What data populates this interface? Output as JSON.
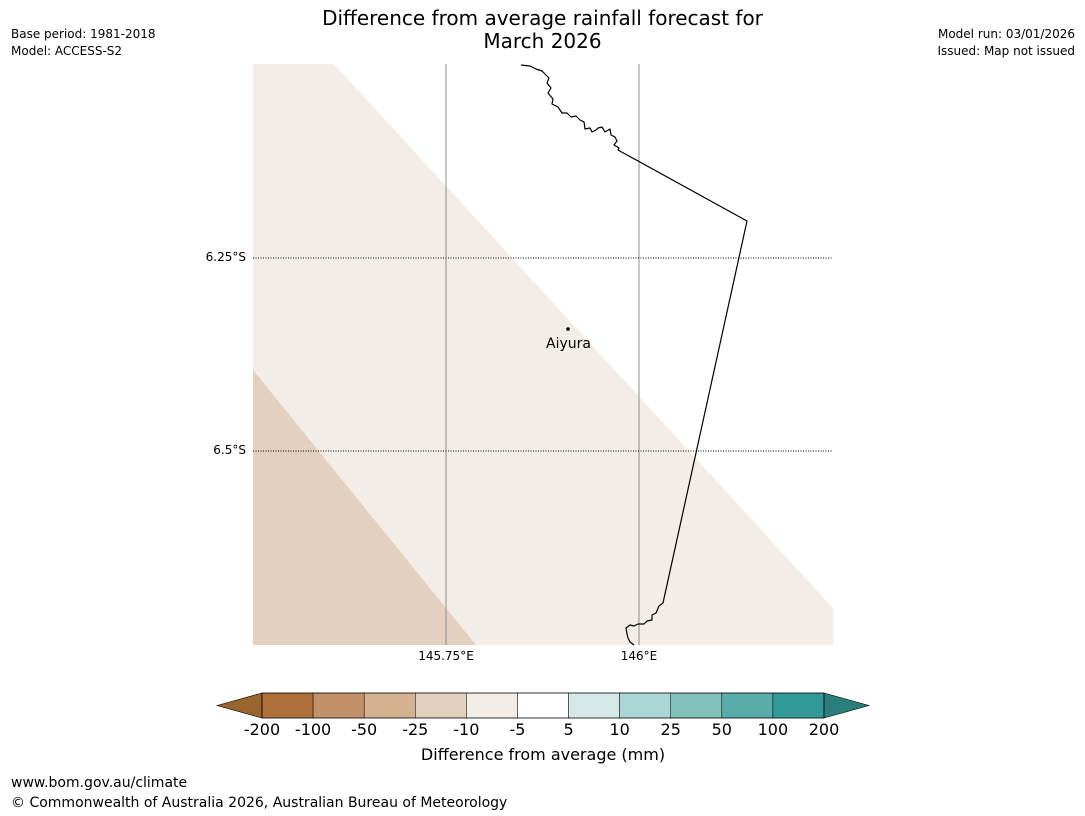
{
  "header": {
    "title_line1": "Difference from average rainfall forecast for",
    "title_line2": "March 2026",
    "base_period": "Base period: 1981-2018",
    "model": "Model: ACCESS-S2",
    "model_run": "Model run: 03/01/2026",
    "issued": "Issued: Map not issued"
  },
  "map": {
    "lat_labels": [
      "6.25°S",
      "6.5°S"
    ],
    "lon_labels": [
      "145.75°E",
      "146°E"
    ],
    "place": {
      "name": "Aiyura"
    }
  },
  "colorbar": {
    "tick_labels": [
      "-200",
      "-100",
      "-50",
      "-25",
      "-10",
      "-5",
      "5",
      "10",
      "25",
      "50",
      "100",
      "200"
    ],
    "colors": [
      "#ad7139",
      "#c29168",
      "#d4b190",
      "#e3d0bf",
      "#f4ede7",
      "#ffffff",
      "#d5e9e9",
      "#abd6d6",
      "#82c0bc",
      "#5aacaa",
      "#319a98"
    ],
    "under_color": "#9a642e",
    "over_color": "#2a7e7c",
    "label": "Difference from average (mm)"
  },
  "footer": {
    "url": "www.bom.gov.au/climate",
    "copyright": "© Commonwealth of Australia 2026, Australian Bureau of Meteorology"
  }
}
